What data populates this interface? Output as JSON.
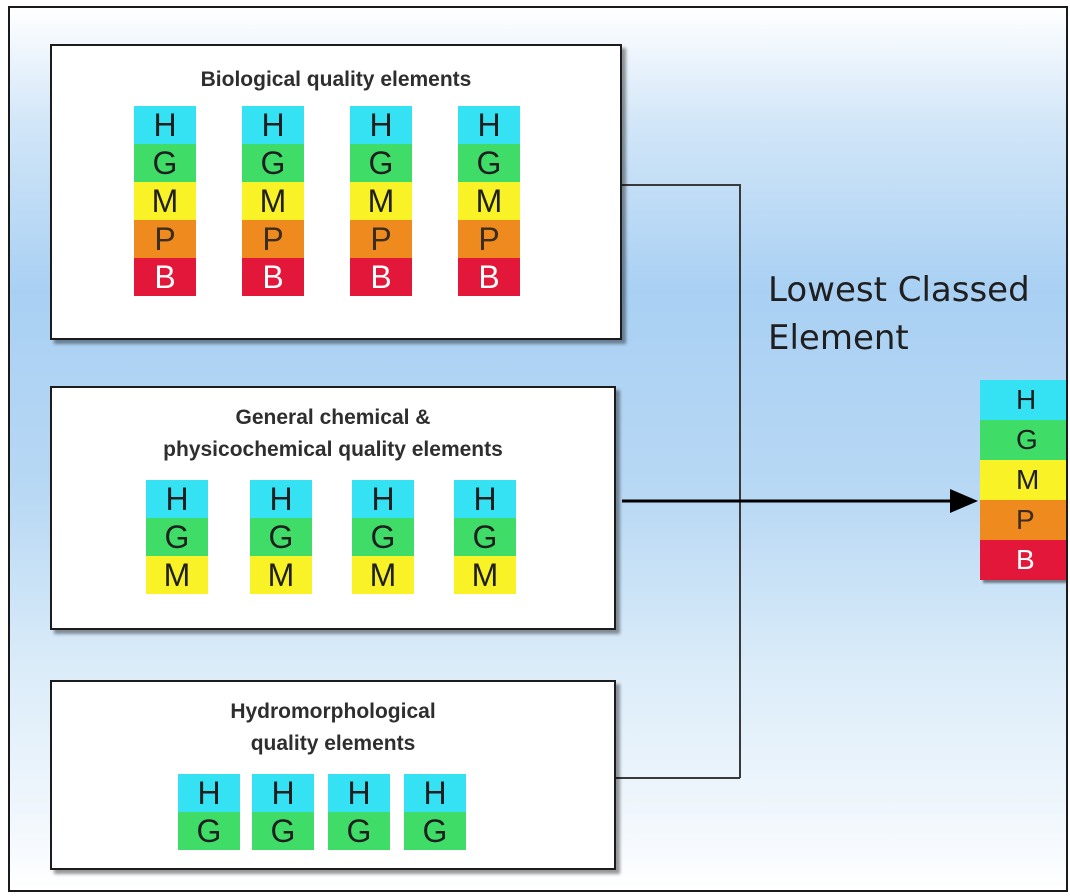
{
  "grade_colors": {
    "H": "#35e2f4",
    "G": "#3fdc68",
    "M": "#f9f226",
    "P": "#ef8a1e",
    "B": "#e3173a"
  },
  "panels": [
    {
      "title": "Biological quality elements",
      "columns": 4,
      "grades": [
        "H",
        "G",
        "M",
        "P",
        "B"
      ]
    },
    {
      "title": "General chemical &\nphysicochemical quality elements",
      "columns": 4,
      "grades": [
        "H",
        "G",
        "M"
      ]
    },
    {
      "title": "Hydromorphological\nquality elements",
      "columns": 4,
      "grades": [
        "H",
        "G"
      ]
    }
  ],
  "result": {
    "label": "Lowest Classed Element",
    "grades": [
      "H",
      "G",
      "M",
      "P",
      "B"
    ]
  }
}
